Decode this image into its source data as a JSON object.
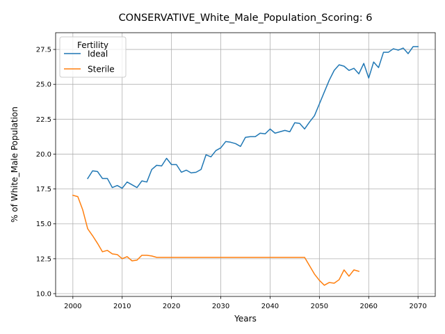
{
  "chart_data": {
    "type": "line",
    "title": "CONSERVATIVE_White_Male_Population_Scoring: 6",
    "xlabel": "Years",
    "ylabel": "% of White_Male Population",
    "xlim": [
      1996.5,
      2073.5
    ],
    "ylim": [
      9.8,
      28.7
    ],
    "xticks": [
      2000,
      2010,
      2020,
      2030,
      2040,
      2050,
      2060,
      2070
    ],
    "yticks": [
      10.0,
      12.5,
      15.0,
      17.5,
      20.0,
      22.5,
      25.0,
      27.5
    ],
    "ytick_labels": [
      "10.0",
      "12.5",
      "15.0",
      "17.5",
      "20.0",
      "22.5",
      "25.0",
      "27.5"
    ],
    "grid": true,
    "legend": {
      "title": "Fertility",
      "placement": "top-left"
    },
    "series": [
      {
        "name": "Ideal",
        "color": "#1f77b4",
        "x": [
          2003,
          2004,
          2005,
          2006,
          2007,
          2008,
          2009,
          2010,
          2011,
          2012,
          2013,
          2014,
          2015,
          2016,
          2017,
          2018,
          2019,
          2020,
          2021,
          2022,
          2023,
          2024,
          2025,
          2026,
          2027,
          2028,
          2029,
          2030,
          2031,
          2032,
          2033,
          2034,
          2035,
          2036,
          2037,
          2038,
          2039,
          2040,
          2041,
          2042,
          2043,
          2044,
          2045,
          2046,
          2047,
          2048,
          2049,
          2050,
          2051,
          2052,
          2053,
          2054,
          2055,
          2056,
          2057,
          2058,
          2059,
          2060,
          2061,
          2062,
          2063,
          2064,
          2065,
          2066,
          2067,
          2068,
          2069,
          2070
        ],
        "values": [
          18.25,
          18.8,
          18.75,
          18.25,
          18.25,
          17.6,
          17.75,
          17.55,
          18.0,
          17.8,
          17.6,
          18.08,
          18.0,
          18.9,
          19.2,
          19.15,
          19.7,
          19.25,
          19.25,
          18.7,
          18.85,
          18.65,
          18.7,
          18.9,
          19.95,
          19.8,
          20.25,
          20.45,
          20.9,
          20.85,
          20.75,
          20.55,
          21.2,
          21.25,
          21.25,
          21.5,
          21.45,
          21.8,
          21.5,
          21.6,
          21.7,
          21.6,
          22.25,
          22.2,
          21.8,
          22.3,
          22.75,
          23.6,
          24.45,
          25.3,
          26.0,
          26.4,
          26.3,
          26.0,
          26.15,
          25.75,
          26.5,
          25.45,
          26.6,
          26.2,
          27.3,
          27.3,
          27.55,
          27.45,
          27.6,
          27.2,
          27.7,
          27.7
        ]
      },
      {
        "name": "Sterile",
        "color": "#ff7f0e",
        "x": [
          2000,
          2001,
          2002,
          2003,
          2004,
          2005,
          2006,
          2007,
          2008,
          2009,
          2010,
          2011,
          2012,
          2013,
          2014,
          2015,
          2016,
          2017,
          2018,
          2019,
          2020,
          2021,
          2022,
          2023,
          2024,
          2025,
          2026,
          2027,
          2028,
          2029,
          2030,
          2031,
          2032,
          2033,
          2034,
          2035,
          2036,
          2037,
          2038,
          2039,
          2040,
          2041,
          2042,
          2043,
          2044,
          2045,
          2046,
          2047,
          2048,
          2049,
          2050,
          2051,
          2052,
          2053,
          2054,
          2055,
          2056,
          2057,
          2058
        ],
        "values": [
          17.05,
          16.95,
          16.0,
          14.65,
          14.15,
          13.6,
          13.0,
          13.1,
          12.85,
          12.8,
          12.5,
          12.65,
          12.35,
          12.4,
          12.75,
          12.75,
          12.7,
          12.6,
          12.6,
          12.6,
          12.6,
          12.6,
          12.6,
          12.6,
          12.6,
          12.6,
          12.6,
          12.6,
          12.6,
          12.6,
          12.6,
          12.6,
          12.6,
          12.6,
          12.6,
          12.6,
          12.6,
          12.6,
          12.6,
          12.6,
          12.6,
          12.6,
          12.6,
          12.6,
          12.6,
          12.6,
          12.6,
          12.6,
          12.0,
          11.4,
          10.95,
          10.6,
          10.8,
          10.75,
          11.0,
          11.7,
          11.25,
          11.7,
          11.6
        ]
      }
    ]
  }
}
